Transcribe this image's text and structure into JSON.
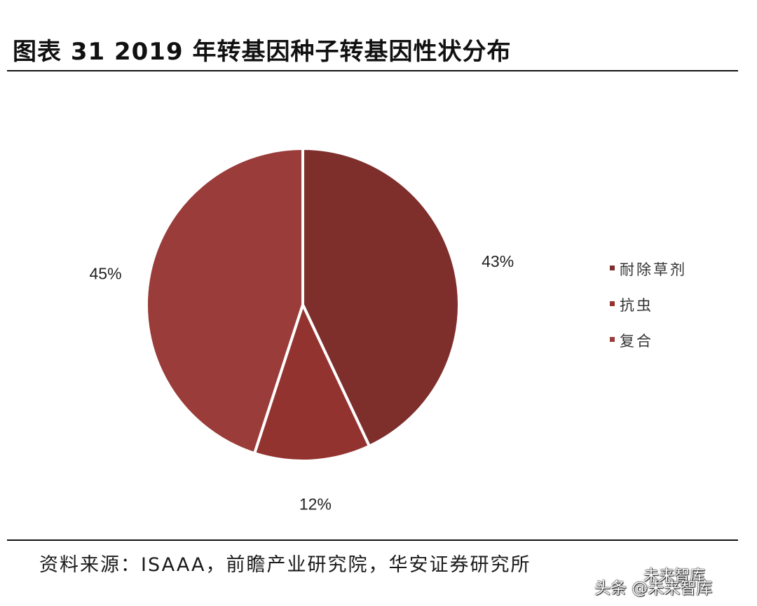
{
  "title": "图表 31 2019 年转基因种子转基因性状分布",
  "source": "资料来源：ISAAA，前瞻产业研究院，华安证券研究所",
  "watermark": {
    "line1": "未来智库",
    "line2": "头条 @未来智库"
  },
  "chart_data": {
    "type": "pie",
    "start_angle_deg": 0,
    "direction": "clockwise",
    "slices": [
      {
        "name": "耐除草剂",
        "value": 43,
        "label": "43%",
        "color": "#7e2e2b"
      },
      {
        "name": "抗虫",
        "value": 12,
        "label": "12%",
        "color": "#93332f"
      },
      {
        "name": "复合",
        "value": 45,
        "label": "45%",
        "color": "#9a3c39"
      }
    ],
    "legend_position": "right"
  }
}
